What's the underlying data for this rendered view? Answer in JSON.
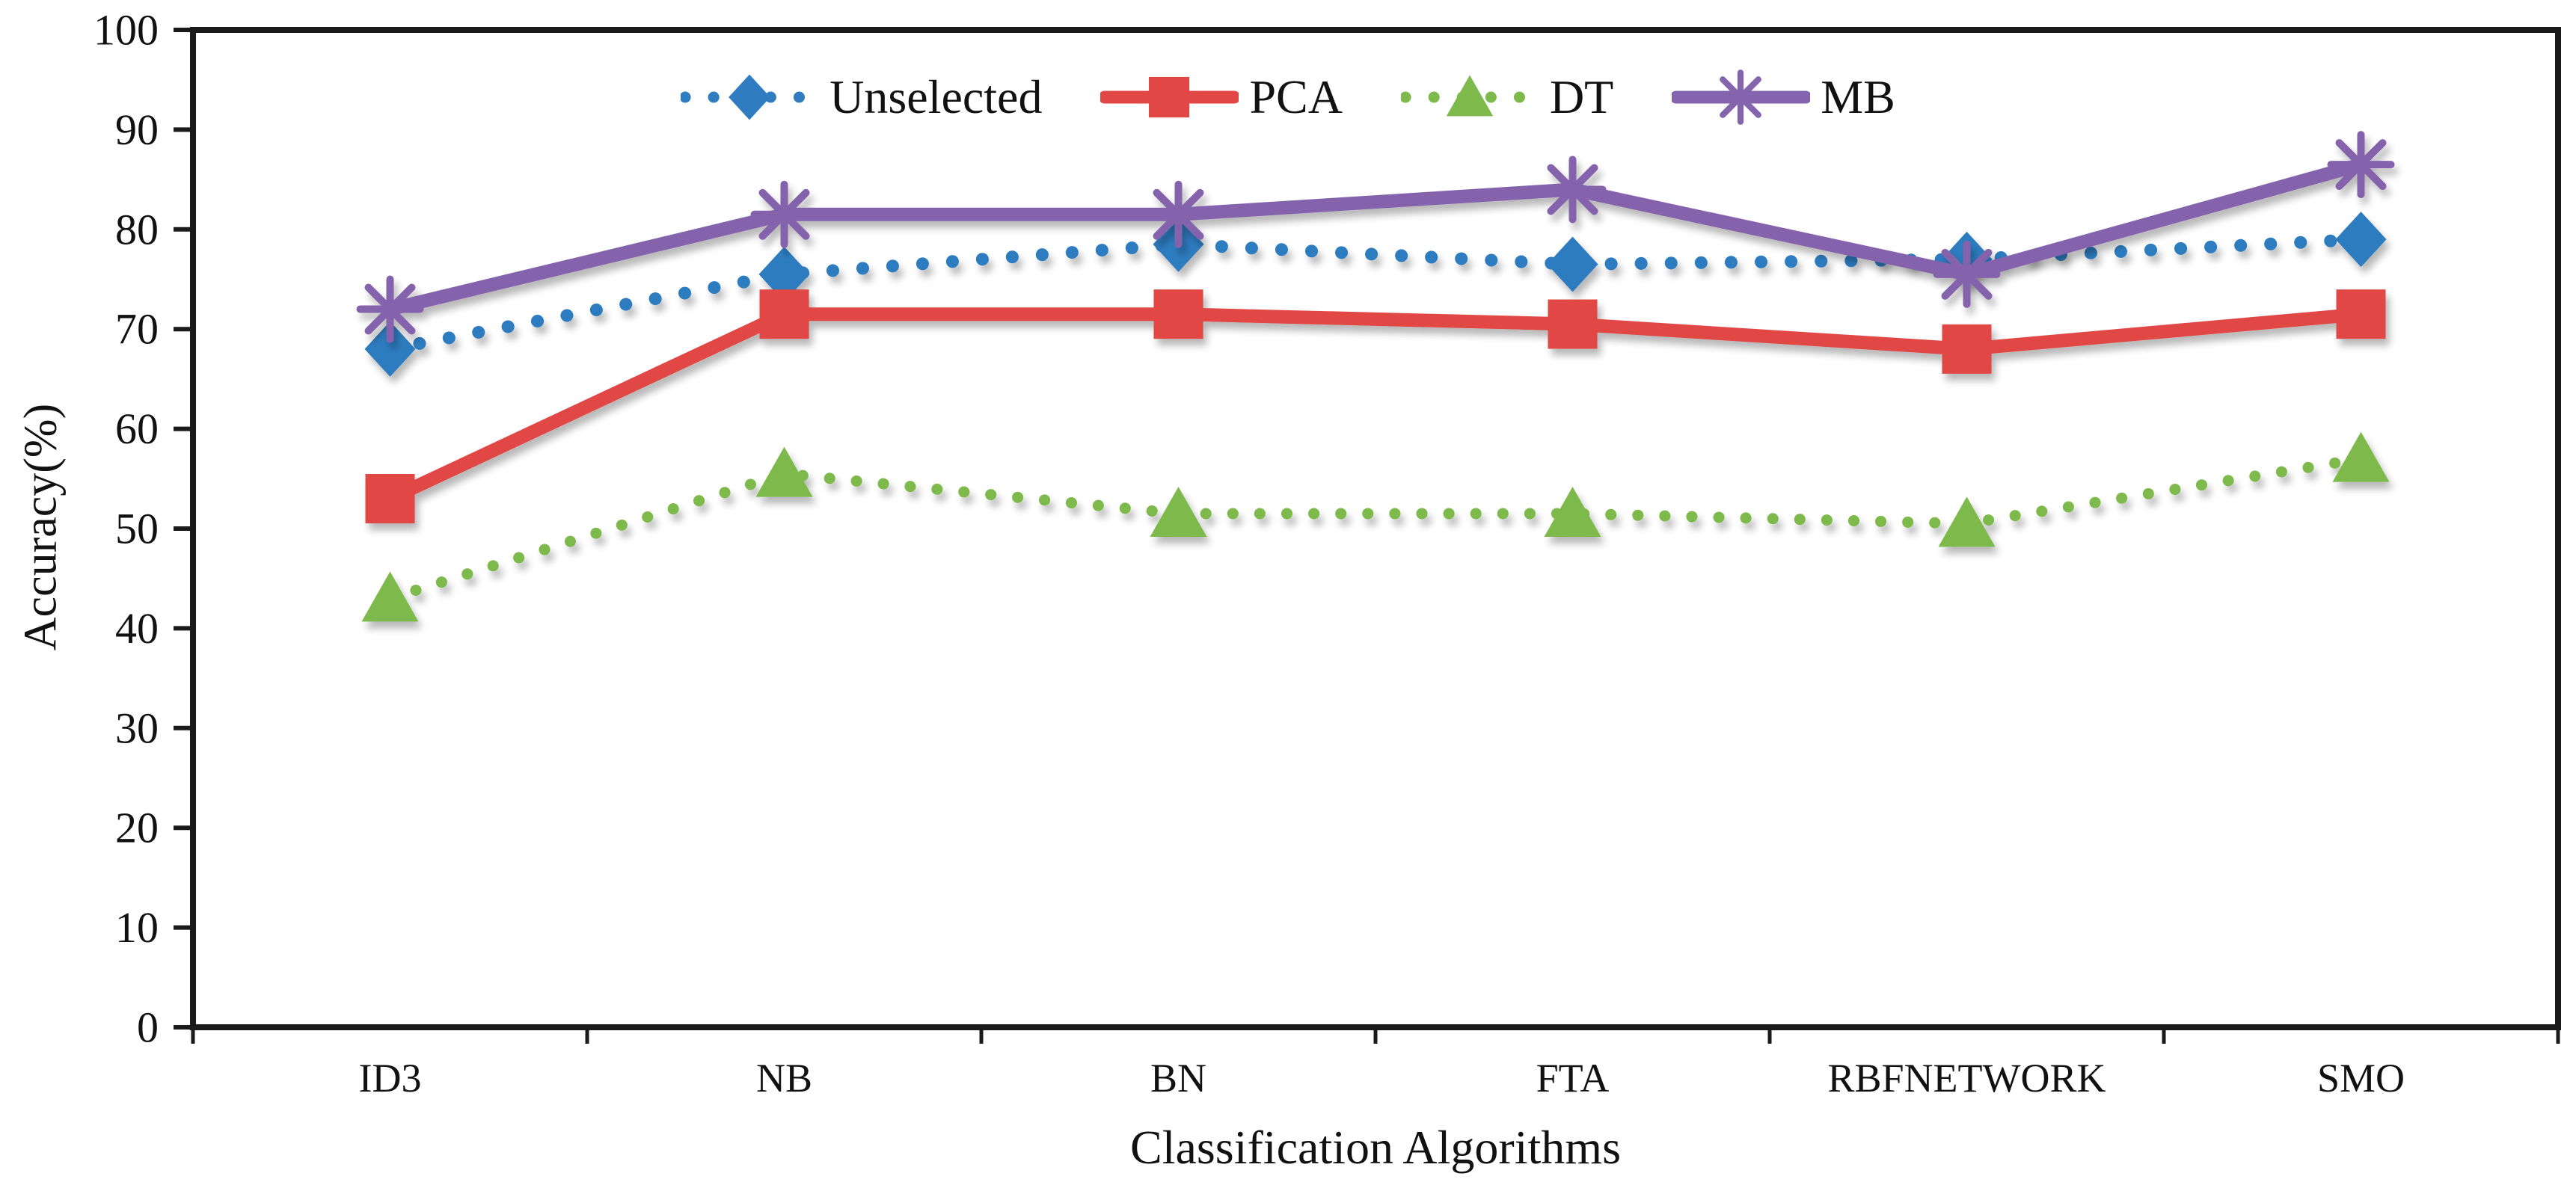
{
  "figure": {
    "background": "#ffffff",
    "axis_color": "#1a1a1a",
    "text_color": "#111111"
  },
  "chart_data": {
    "type": "line",
    "title": "",
    "xlabel": "Classification Algorithms",
    "ylabel": "Accuracy(%)",
    "ylim": [
      0,
      100
    ],
    "ytick_step": 10,
    "yticks": [
      0,
      10,
      20,
      30,
      40,
      50,
      60,
      70,
      80,
      90,
      100
    ],
    "grid": false,
    "legend_position": "top-center",
    "categories": [
      "ID3",
      "NB",
      "BN",
      "FTA",
      "RBFNETWORK",
      "SMO"
    ],
    "series": [
      {
        "name": "Unselected",
        "color": "#2F7CC0",
        "line_style": "dotted",
        "marker": "diamond",
        "values": [
          68,
          75.5,
          78.5,
          76.5,
          77,
          79
        ]
      },
      {
        "name": "PCA",
        "color": "#E04745",
        "line_style": "solid",
        "marker": "square",
        "values": [
          53,
          71.5,
          71.5,
          70.5,
          68,
          71.5
        ]
      },
      {
        "name": "DT",
        "color": "#7EB94C",
        "line_style": "dotted",
        "marker": "triangle",
        "values": [
          43,
          55.5,
          51.5,
          51.5,
          50.5,
          57
        ]
      },
      {
        "name": "MB",
        "color": "#8464AC",
        "line_style": "solid",
        "marker": "asterisk",
        "values": [
          72,
          81.5,
          81.5,
          84,
          75.5,
          86.5
        ]
      }
    ]
  }
}
